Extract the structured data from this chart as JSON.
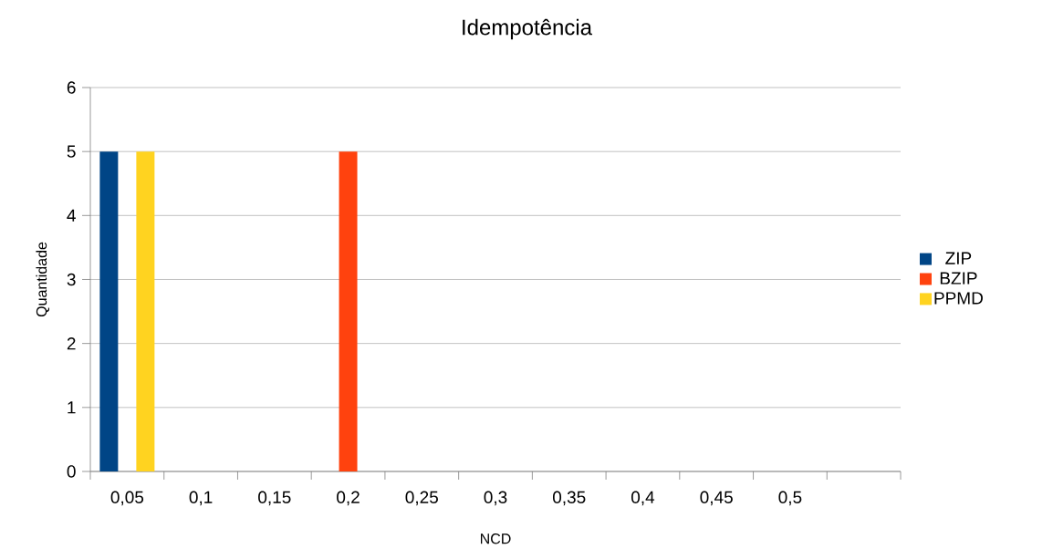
{
  "chart_data": {
    "type": "bar",
    "title": "Idempotência",
    "xlabel": "NCD",
    "ylabel": "Quantidade",
    "categories": [
      "0,05",
      "0,1",
      "0,15",
      "0,2",
      "0,25",
      "0,3",
      "0,35",
      "0,4",
      "0,45",
      "0,5",
      null
    ],
    "series": [
      {
        "name": "ZIP",
        "color": "#004586",
        "values": [
          5,
          0,
          0,
          0,
          0,
          0,
          0,
          0,
          0,
          0,
          0
        ]
      },
      {
        "name": "BZIP",
        "color": "#ff420e",
        "values": [
          0,
          0,
          0,
          5,
          0,
          0,
          0,
          0,
          0,
          0,
          0
        ]
      },
      {
        "name": "PPMD",
        "color": "#ffd320",
        "values": [
          5,
          0,
          0,
          0,
          0,
          0,
          0,
          0,
          0,
          0,
          0
        ]
      }
    ],
    "ylim": [
      0,
      6
    ],
    "yticks": [
      0,
      1,
      2,
      3,
      4,
      5,
      6
    ],
    "grid": "y",
    "legend": "right"
  }
}
